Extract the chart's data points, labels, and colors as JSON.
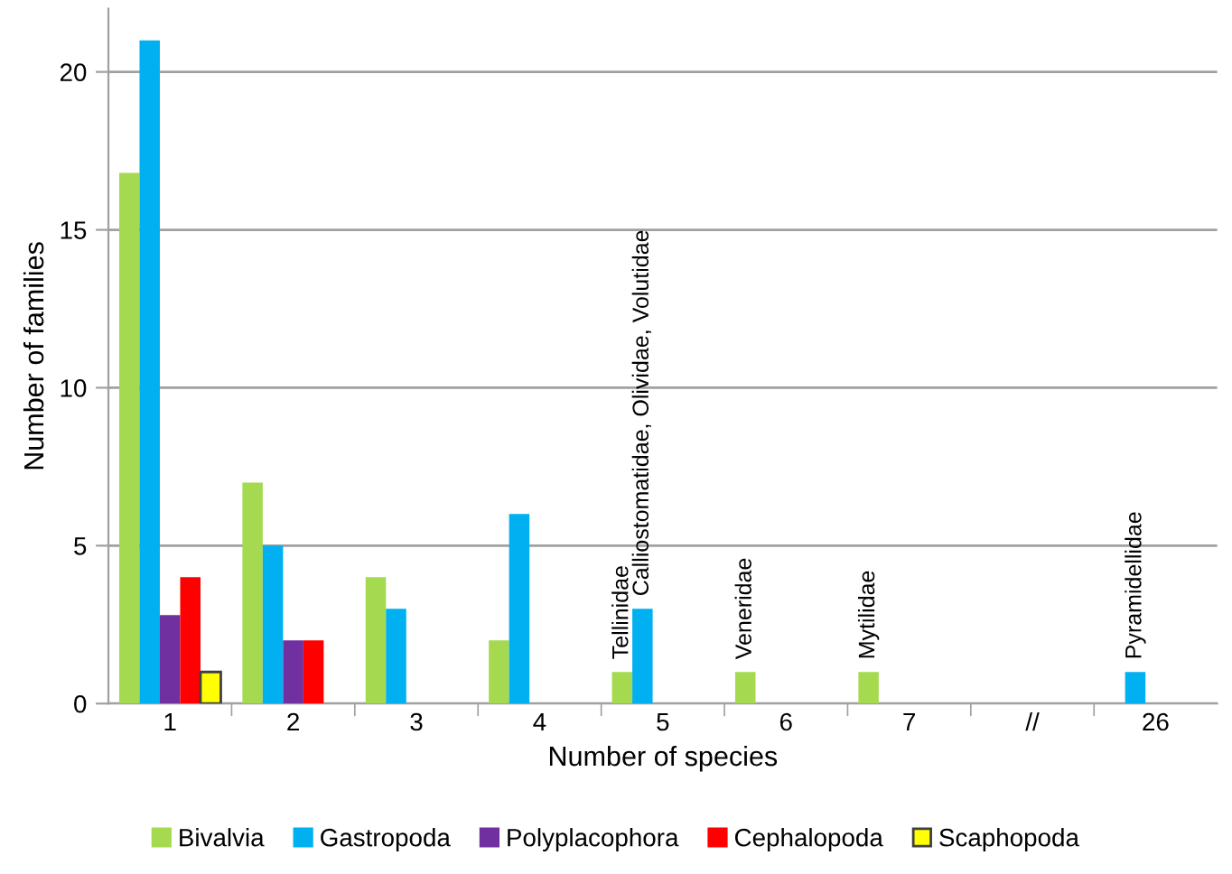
{
  "chart_data": {
    "type": "bar",
    "xlabel": "Number of species",
    "ylabel": "Number of families",
    "categories": [
      "1",
      "2",
      "3",
      "4",
      "5",
      "6",
      "7",
      "//",
      "26"
    ],
    "series": [
      {
        "name": "Bivalvia",
        "color": "#a5d94f",
        "values": [
          16.8,
          7,
          4,
          2,
          1,
          1,
          1,
          0,
          0
        ]
      },
      {
        "name": "Gastropoda",
        "color": "#00b0f0",
        "values": [
          21,
          5,
          3,
          6,
          3,
          0,
          0,
          0,
          1
        ]
      },
      {
        "name": "Polyplacophora",
        "color": "#7030a0",
        "values": [
          2.8,
          2,
          0,
          0,
          0,
          0,
          0,
          0,
          0
        ]
      },
      {
        "name": "Cephalopoda",
        "color": "#ff0000",
        "values": [
          4,
          2,
          0,
          0,
          0,
          0,
          0,
          0,
          0
        ]
      },
      {
        "name": "Scaphopoda",
        "color": "#ffff00",
        "values": [
          1,
          0,
          0,
          0,
          0,
          0,
          0,
          0,
          0
        ]
      }
    ],
    "annotations": [
      "Tellinidae",
      "Calliostomatidae, Olividae, Volutidae",
      "Veneridae",
      "Mytilidae",
      "Pyramidellidae"
    ],
    "ylim": [
      0,
      22
    ],
    "yticks": [
      0,
      5,
      10,
      15,
      20
    ],
    "grid": "y",
    "legend": "bottom"
  }
}
